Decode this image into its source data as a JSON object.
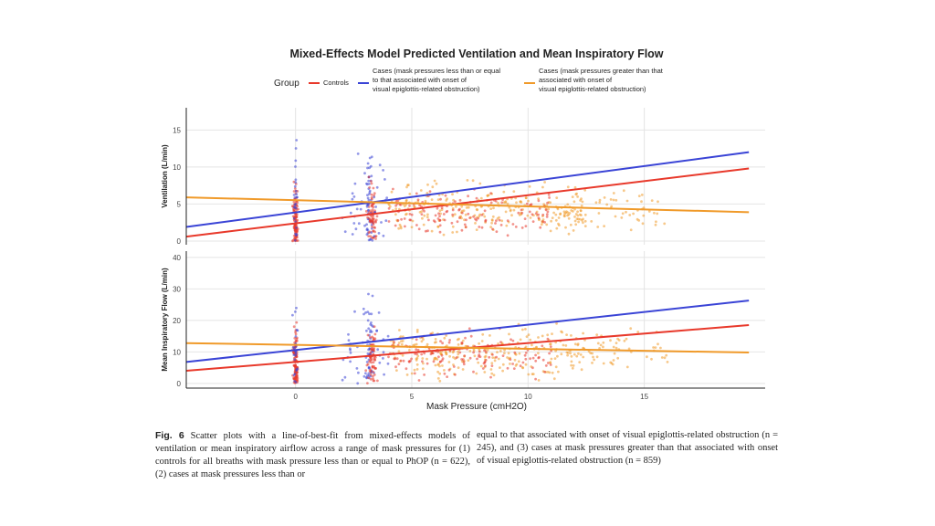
{
  "chart_data": {
    "type": "scatter",
    "title": "Mixed-Effects Model Predicted Ventilation and Mean Inspiratory Flow",
    "xlabel": "Mask Pressure (cmH2O)",
    "xlim": [
      -4.7,
      20.2
    ],
    "x_ticks": [
      0,
      5,
      10,
      15
    ],
    "legend": {
      "position": "top",
      "title": "Group",
      "entries": [
        {
          "label": "Controls",
          "color": "#e8392b"
        },
        {
          "label": "Cases (mask pressures less than or equal to that associated with onset of visual epiglottis-related obstruction)",
          "color": "#3a44d6"
        },
        {
          "label": "Cases (mask pressures greater than that associated with onset of visual epiglottis-related obstruction)",
          "color": "#f09a2a"
        }
      ]
    },
    "panels": [
      {
        "ylabel": "Ventilation (L/min)",
        "ylim": [
          -0.5,
          18
        ],
        "y_ticks": [
          0,
          5,
          10,
          15
        ],
        "lines": [
          {
            "group": "Controls",
            "x": [
              -4.7,
              19.5
            ],
            "y": [
              0.6,
              9.8
            ]
          },
          {
            "group": "Cases (mask pressures less than or equal to that associated with onset of visual epiglottis-related obstruction)",
            "x": [
              -4.7,
              19.5
            ],
            "y": [
              1.9,
              12.0
            ]
          },
          {
            "group": "Cases (mask pressures greater than that associated with onset of visual epiglottis-related obstruction)",
            "x": [
              -4.7,
              19.5
            ],
            "y": [
              5.9,
              3.9
            ]
          }
        ]
      },
      {
        "ylabel": "Mean Inspiratory Flow (L/min)",
        "ylim": [
          -1.5,
          42
        ],
        "y_ticks": [
          0,
          10,
          20,
          30,
          40
        ],
        "lines": [
          {
            "group": "Controls",
            "x": [
              -4.7,
              19.5
            ],
            "y": [
              4.0,
              18.5
            ]
          },
          {
            "group": "Cases (mask pressures less than or equal to that associated with onset of visual epiglottis-related obstruction)",
            "x": [
              -4.7,
              19.5
            ],
            "y": [
              6.8,
              26.3
            ]
          },
          {
            "group": "Cases (mask pressures greater than that associated with onset of visual epiglottis-related obstruction)",
            "x": [
              -4.7,
              19.5
            ],
            "y": [
              12.8,
              9.8
            ]
          }
        ]
      }
    ]
  },
  "caption": {
    "label": "Fig. 6",
    "left": "Scatter plots with a line-of-best-fit from mixed-effects models of ventilation or mean inspiratory airflow across a range of mask pressures for (1) controls for all breaths with mask pressure less than or equal to PhOP (n = 622), (2) cases at mask pressures less than or",
    "right": "equal to that associated with onset of visual epiglottis-related obstruction (n = 245), and (3) cases at mask pressures greater than that associated with onset of visual epiglottis-related obstruction (n = 859)"
  }
}
